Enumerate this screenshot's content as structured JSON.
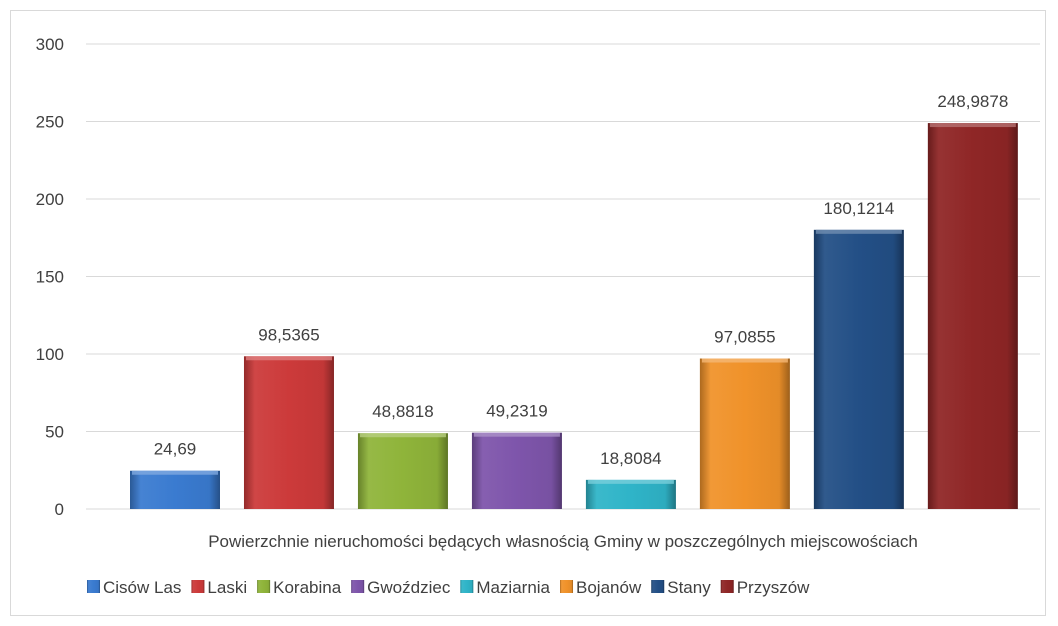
{
  "chart_data": {
    "type": "bar",
    "categories": [
      "Powierzchnie nieruchomości będących własnością Gminy w poszczególnych miejscowościach"
    ],
    "series": [
      {
        "name": "Cisów Las",
        "values": [
          24.69
        ],
        "label": "24,69",
        "color": "#3a7bd0"
      },
      {
        "name": "Laski",
        "values": [
          98.5365
        ],
        "label": "98,5365",
        "color": "#cc3a3a"
      },
      {
        "name": "Korabina",
        "values": [
          48.8818
        ],
        "label": "48,8818",
        "color": "#8fb43a"
      },
      {
        "name": "Gwoździec",
        "values": [
          49.2319
        ],
        "label": "49,2319",
        "color": "#7e55ab"
      },
      {
        "name": "Maziarnia",
        "values": [
          18.8084
        ],
        "label": "18,8084",
        "color": "#2fb4c8"
      },
      {
        "name": "Bojanów",
        "values": [
          97.0855
        ],
        "label": "97,0855",
        "color": "#f0922a"
      },
      {
        "name": "Stany",
        "values": [
          180.1214
        ],
        "label": "180,1214",
        "color": "#234f86"
      },
      {
        "name": "Przyszów",
        "values": [
          248.9878
        ],
        "label": "248,9878",
        "color": "#8f2626"
      }
    ],
    "ylim": [
      0,
      300
    ],
    "yticks": [
      "0",
      "50",
      "100",
      "150",
      "200",
      "250",
      "300"
    ],
    "grid": true,
    "legend": "bottom"
  }
}
